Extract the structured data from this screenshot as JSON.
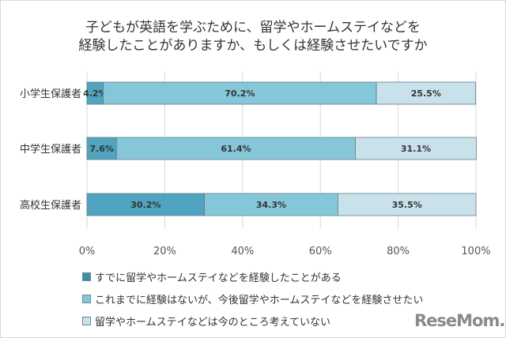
{
  "chart_data": {
    "type": "bar",
    "orientation": "horizontal",
    "stacked": true,
    "title": [
      "子どもが英語を学ぶために、留学やホームステイなどを",
      "経験したことがありますか、もしくは経験させたいですか"
    ],
    "categories": [
      "小学生保護者",
      "中学生保護者",
      "高校生保護者"
    ],
    "series": [
      {
        "name": "すでに留学やホームステイなどを経験したことがある",
        "values": [
          4.2,
          7.6,
          30.2
        ],
        "labels": [
          "4.2%",
          "7.6%",
          "30.2%"
        ],
        "color": "#50a4bf"
      },
      {
        "name": "これまでに経験はないが、今後留学やホームステイなどを経験させたい",
        "values": [
          70.2,
          61.4,
          34.3
        ],
        "labels": [
          "70.2%",
          "61.4%",
          "34.3%"
        ],
        "color": "#86c6d9"
      },
      {
        "name": "留学やホームステイなどは今のところ考えていない",
        "values": [
          25.5,
          31.1,
          35.5
        ],
        "labels": [
          "25.5%",
          "31.1%",
          "35.5%"
        ],
        "color": "#c9e1ea"
      }
    ],
    "xlim": [
      0,
      100
    ],
    "xticks": [
      "0%",
      "20%",
      "40%",
      "60%",
      "80%",
      "100%"
    ],
    "grid": true,
    "legend_placement": "bottom-left"
  },
  "logo": "ReseMom"
}
